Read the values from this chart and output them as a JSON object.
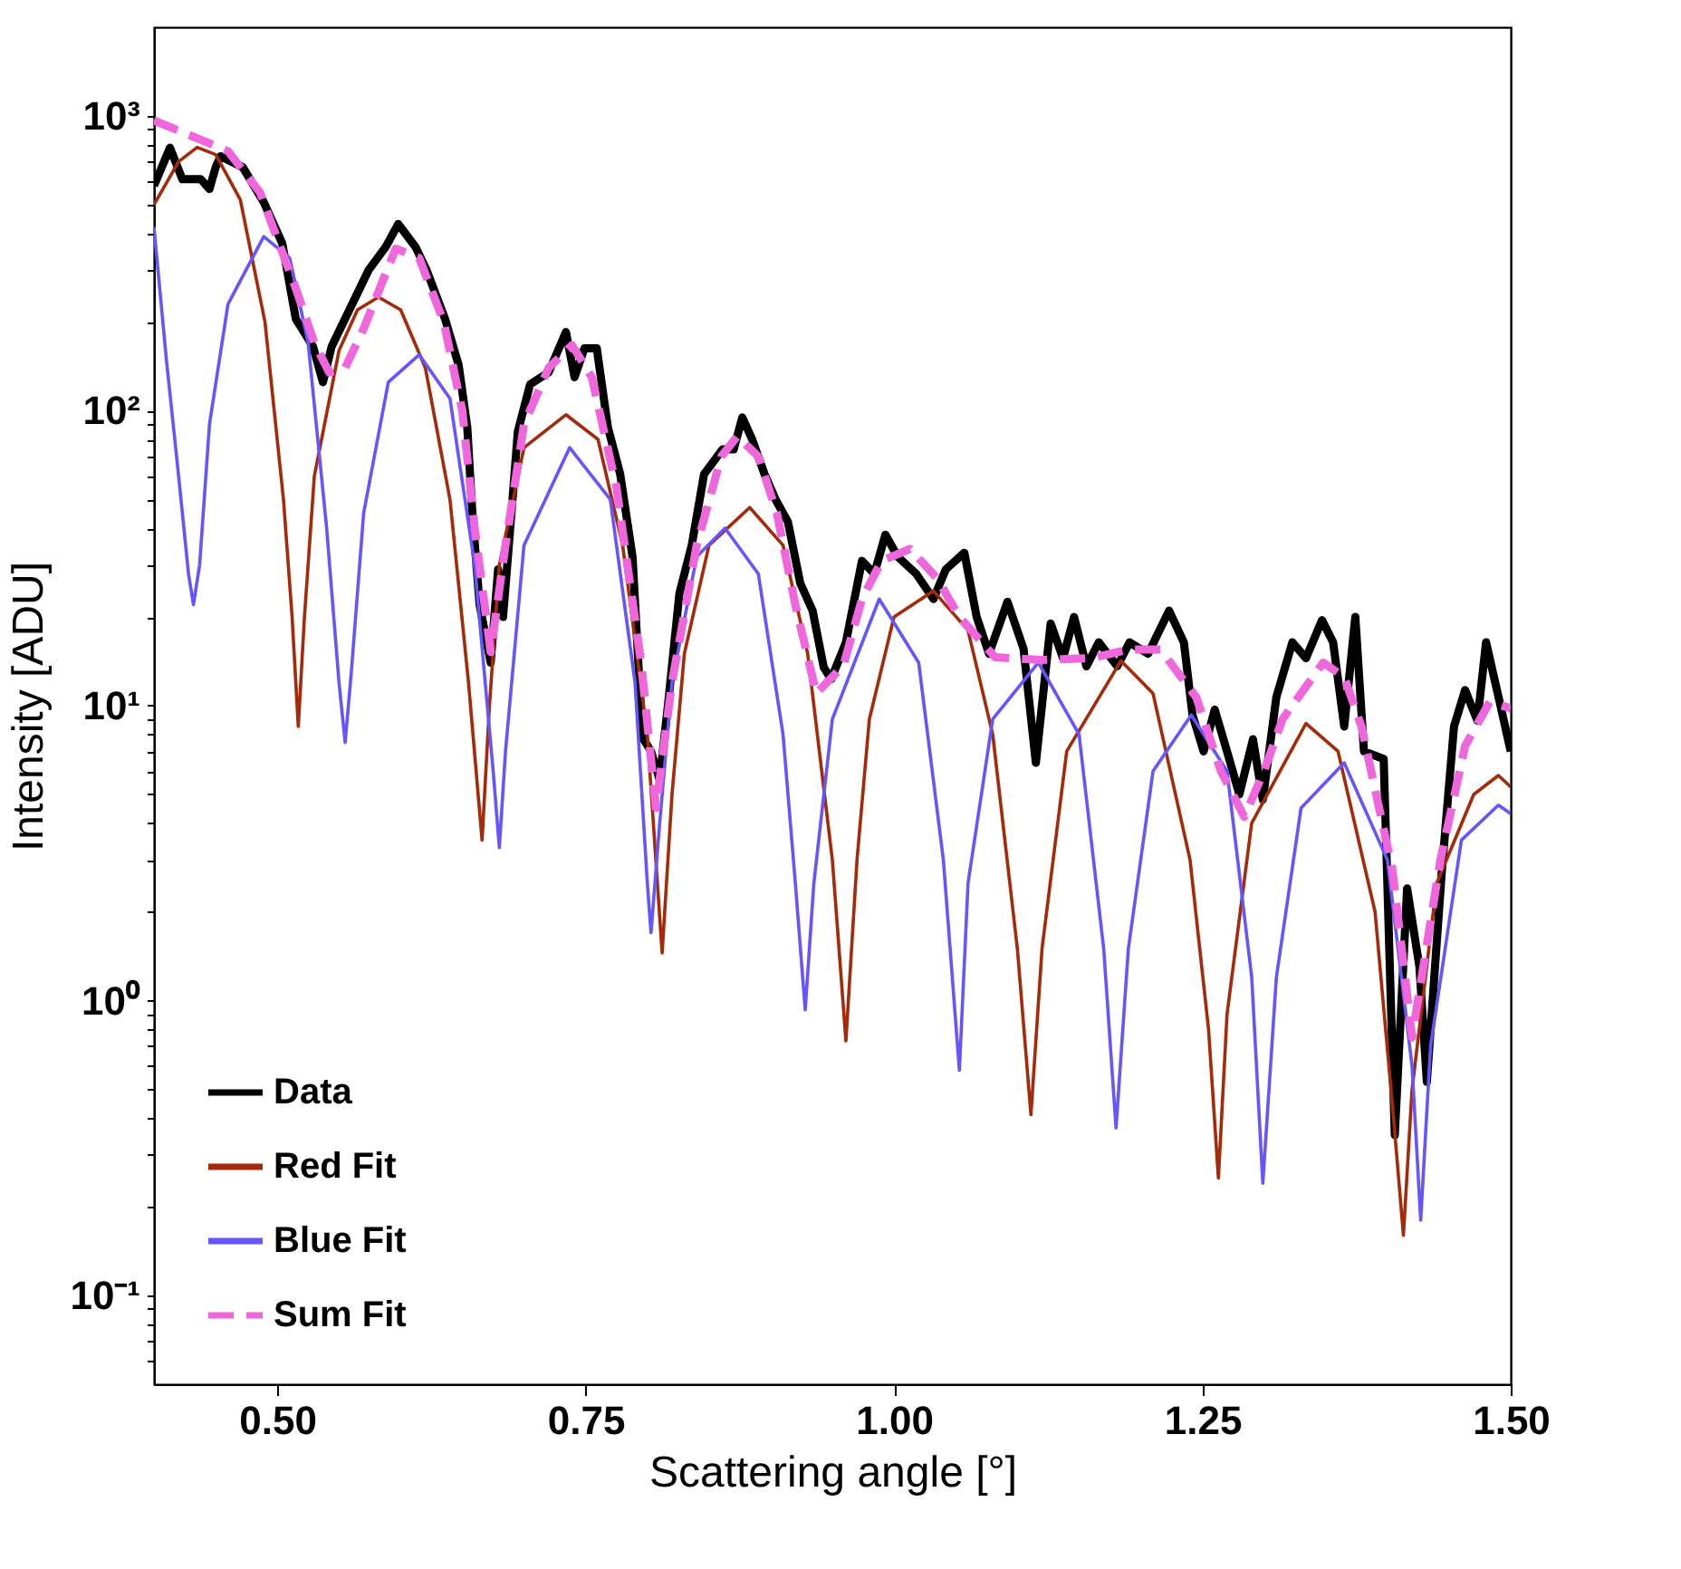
{
  "chart_data": {
    "type": "line",
    "xlabel": "Scattering angle [°]",
    "ylabel": "Intensity [ADU]",
    "log": "y",
    "legend": "bottom left",
    "xlim": [
      0.4,
      1.5
    ],
    "ylim": [
      0.05,
      2000
    ],
    "xticks": [
      {
        "value": 0.5,
        "label": "0.50"
      },
      {
        "value": 0.75,
        "label": "0.75"
      },
      {
        "value": 1.0,
        "label": "1.00"
      },
      {
        "value": 1.25,
        "label": "1.25"
      },
      {
        "value": 1.5,
        "label": "1.50"
      }
    ],
    "yticks": [
      {
        "value": 0.06,
        "label": null
      },
      {
        "value": 0.07,
        "label": null
      },
      {
        "value": 0.08,
        "label": null
      },
      {
        "value": 0.09,
        "label": null
      },
      {
        "value": 0.1,
        "label": "10⁻¹"
      },
      {
        "value": 0.2,
        "label": null
      },
      {
        "value": 0.3,
        "label": null
      },
      {
        "value": 0.4,
        "label": null
      },
      {
        "value": 0.5,
        "label": null
      },
      {
        "value": 0.6,
        "label": null
      },
      {
        "value": 0.7,
        "label": null
      },
      {
        "value": 0.8,
        "label": null
      },
      {
        "value": 0.9,
        "label": null
      },
      {
        "value": 1,
        "label": "10⁰"
      },
      {
        "value": 2,
        "label": null
      },
      {
        "value": 3,
        "label": null
      },
      {
        "value": 4,
        "label": null
      },
      {
        "value": 5,
        "label": null
      },
      {
        "value": 6,
        "label": null
      },
      {
        "value": 7,
        "label": null
      },
      {
        "value": 8,
        "label": null
      },
      {
        "value": 9,
        "label": null
      },
      {
        "value": 10,
        "label": "10¹"
      },
      {
        "value": 20,
        "label": null
      },
      {
        "value": 30,
        "label": null
      },
      {
        "value": 40,
        "label": null
      },
      {
        "value": 50,
        "label": null
      },
      {
        "value": 60,
        "label": null
      },
      {
        "value": 70,
        "label": null
      },
      {
        "value": 80,
        "label": null
      },
      {
        "value": 90,
        "label": null
      },
      {
        "value": 100,
        "label": "10²"
      },
      {
        "value": 200,
        "label": null
      },
      {
        "value": 300,
        "label": null
      },
      {
        "value": 400,
        "label": null
      },
      {
        "value": 500,
        "label": null
      },
      {
        "value": 600,
        "label": null
      },
      {
        "value": 700,
        "label": null
      },
      {
        "value": 800,
        "label": null
      },
      {
        "value": 900,
        "label": null
      },
      {
        "value": 1000,
        "label": "10³"
      }
    ],
    "series": [
      {
        "name": "Data",
        "color": "#000000",
        "line_style": "solid",
        "x": [
          0.4,
          0.413,
          0.423,
          0.438,
          0.445,
          0.45,
          0.454,
          0.472,
          0.489,
          0.504,
          0.515,
          0.529,
          0.537,
          0.544,
          0.558,
          0.574,
          0.588,
          0.598,
          0.612,
          0.621,
          0.636,
          0.647,
          0.654,
          0.658,
          0.664,
          0.673,
          0.679,
          0.683,
          0.69,
          0.695,
          0.705,
          0.72,
          0.734,
          0.741,
          0.749,
          0.759,
          0.768,
          0.778,
          0.788,
          0.796,
          0.803,
          0.81,
          0.817,
          0.826,
          0.836,
          0.846,
          0.861,
          0.87,
          0.877,
          0.885,
          0.895,
          0.904,
          0.914,
          0.924,
          0.934,
          0.943,
          0.949,
          0.961,
          0.974,
          0.984,
          0.993,
          1.003,
          1.018,
          1.032,
          1.042,
          1.057,
          1.067,
          1.077,
          1.092,
          1.105,
          1.115,
          1.127,
          1.137,
          1.146,
          1.156,
          1.166,
          1.181,
          1.191,
          1.206,
          1.223,
          1.235,
          1.242,
          1.251,
          1.26,
          1.27,
          1.28,
          1.291,
          1.299,
          1.31,
          1.323,
          1.334,
          1.347,
          1.356,
          1.365,
          1.374,
          1.381,
          1.397,
          1.406,
          1.416,
          1.426,
          1.432,
          1.444,
          1.454,
          1.463,
          1.473,
          1.48,
          1.491,
          1.5
        ],
        "values": [
          580,
          780,
          610,
          610,
          565,
          670,
          730,
          670,
          510,
          370,
          205,
          165,
          125,
          165,
          218,
          300,
          360,
          430,
          360,
          300,
          205,
          143,
          88,
          46,
          22,
          14,
          29,
          20,
          46,
          85,
          123,
          135,
          185,
          130,
          163,
          163,
          88,
          61,
          32,
          7.8,
          7,
          5.6,
          10.3,
          24,
          35,
          61,
          74,
          74,
          95,
          80,
          61,
          50,
          42,
          26,
          21,
          13.5,
          12.3,
          16.4,
          31,
          28,
          38,
          32,
          28,
          23,
          29,
          33,
          20,
          15,
          22.5,
          15.6,
          6.4,
          19,
          14.5,
          20,
          13.6,
          16.4,
          13.6,
          16.4,
          15,
          21,
          16.4,
          9.3,
          7,
          9.7,
          7,
          5,
          7.7,
          4.8,
          10.7,
          16.4,
          14.5,
          19.5,
          16.4,
          8.5,
          20,
          7,
          6.6,
          0.35,
          2.4,
          1.3,
          0.53,
          2.7,
          8.5,
          11.3,
          8.9,
          16.4,
          10.3,
          7
        ]
      },
      {
        "name": "Red Fit",
        "color": "#a52a0a",
        "line_style": "solid",
        "x": [
          0.4,
          0.42,
          0.435,
          0.45,
          0.47,
          0.49,
          0.505,
          0.512,
          0.517,
          0.522,
          0.53,
          0.55,
          0.565,
          0.582,
          0.6,
          0.62,
          0.64,
          0.655,
          0.666,
          0.672,
          0.68,
          0.7,
          0.734,
          0.76,
          0.78,
          0.8,
          0.812,
          0.82,
          0.83,
          0.85,
          0.883,
          0.91,
          0.93,
          0.95,
          0.961,
          0.97,
          0.98,
          1.0,
          1.032,
          1.06,
          1.08,
          1.1,
          1.111,
          1.12,
          1.14,
          1.184,
          1.21,
          1.24,
          1.255,
          1.263,
          1.27,
          1.29,
          1.334,
          1.36,
          1.39,
          1.405,
          1.413,
          1.42,
          1.44,
          1.47,
          1.49,
          1.5
        ],
        "values": [
          500,
          700,
          783,
          740,
          520,
          200,
          50,
          20,
          8.5,
          20,
          60,
          160,
          220,
          243,
          220,
          140,
          50,
          12,
          3.5,
          10,
          30,
          75,
          97,
          80,
          35,
          8,
          1.45,
          5,
          15,
          35,
          47,
          35,
          15,
          3,
          0.73,
          3,
          9,
          20,
          24.5,
          18,
          8,
          1.5,
          0.41,
          1.5,
          7,
          14.2,
          11,
          3,
          0.8,
          0.25,
          0.9,
          4,
          8.7,
          7,
          2,
          0.4,
          0.16,
          0.5,
          2.5,
          5,
          5.8,
          5.3
        ]
      },
      {
        "name": "Blue Fit",
        "color": "#6655ff",
        "line_style": "solid",
        "x": [
          0.4,
          0.41,
          0.42,
          0.428,
          0.432,
          0.437,
          0.445,
          0.46,
          0.489,
          0.51,
          0.525,
          0.54,
          0.55,
          0.555,
          0.56,
          0.57,
          0.59,
          0.615,
          0.64,
          0.66,
          0.675,
          0.68,
          0.685,
          0.7,
          0.737,
          0.77,
          0.79,
          0.8,
          0.803,
          0.81,
          0.82,
          0.84,
          0.863,
          0.89,
          0.91,
          0.92,
          0.928,
          0.935,
          0.95,
          0.988,
          1.02,
          1.04,
          1.053,
          1.06,
          1.08,
          1.117,
          1.15,
          1.17,
          1.18,
          1.19,
          1.21,
          1.241,
          1.27,
          1.29,
          1.299,
          1.31,
          1.33,
          1.365,
          1.4,
          1.42,
          1.427,
          1.435,
          1.46,
          1.49,
          1.5
        ],
        "values": [
          420,
          150,
          60,
          28,
          22,
          30,
          90,
          230,
          390,
          330,
          170,
          40,
          12,
          7.5,
          13,
          45,
          125,
          155,
          110,
          30,
          6,
          3.3,
          7,
          35,
          75,
          50,
          12,
          2.5,
          1.7,
          4,
          12,
          32,
          40,
          28,
          8,
          2.5,
          0.93,
          2.5,
          9,
          23,
          14,
          3,
          0.58,
          2.5,
          9,
          14,
          8,
          1.5,
          0.37,
          1.5,
          6,
          9.3,
          6,
          1.2,
          0.24,
          1.2,
          4.5,
          6.4,
          3,
          0.6,
          0.18,
          0.7,
          3.5,
          4.6,
          4.3
        ]
      },
      {
        "name": "Sum Fit",
        "color": "#f066dd",
        "line_style": "dashed",
        "x": [
          0.4,
          0.438,
          0.46,
          0.486,
          0.515,
          0.53,
          0.542,
          0.555,
          0.57,
          0.596,
          0.615,
          0.635,
          0.65,
          0.66,
          0.673,
          0.685,
          0.7,
          0.72,
          0.739,
          0.755,
          0.775,
          0.795,
          0.807,
          0.82,
          0.84,
          0.86,
          0.873,
          0.89,
          0.905,
          0.92,
          0.937,
          0.959,
          0.974,
          0.99,
          1.013,
          1.035,
          1.053,
          1.082,
          1.12,
          1.16,
          1.19,
          1.216,
          1.245,
          1.265,
          1.284,
          1.3,
          1.315,
          1.348,
          1.365,
          1.379,
          1.404,
          1.42,
          1.443,
          1.463,
          1.483,
          1.5
        ],
        "values": [
          965,
          830,
          760,
          550,
          260,
          170,
          135,
          140,
          190,
          355,
          330,
          200,
          100,
          40,
          15.2,
          35,
          90,
          140,
          167,
          130,
          55,
          14,
          4.5,
          12,
          35,
          70,
          82,
          70,
          45,
          22,
          11,
          13.7,
          23,
          31,
          34,
          27,
          20,
          14.6,
          14.3,
          14.5,
          15.5,
          15.5,
          10.7,
          6,
          4.2,
          6,
          9,
          14,
          12.5,
          8.5,
          2.8,
          0.75,
          3,
          7.3,
          10.3,
          9.8
        ]
      }
    ]
  }
}
